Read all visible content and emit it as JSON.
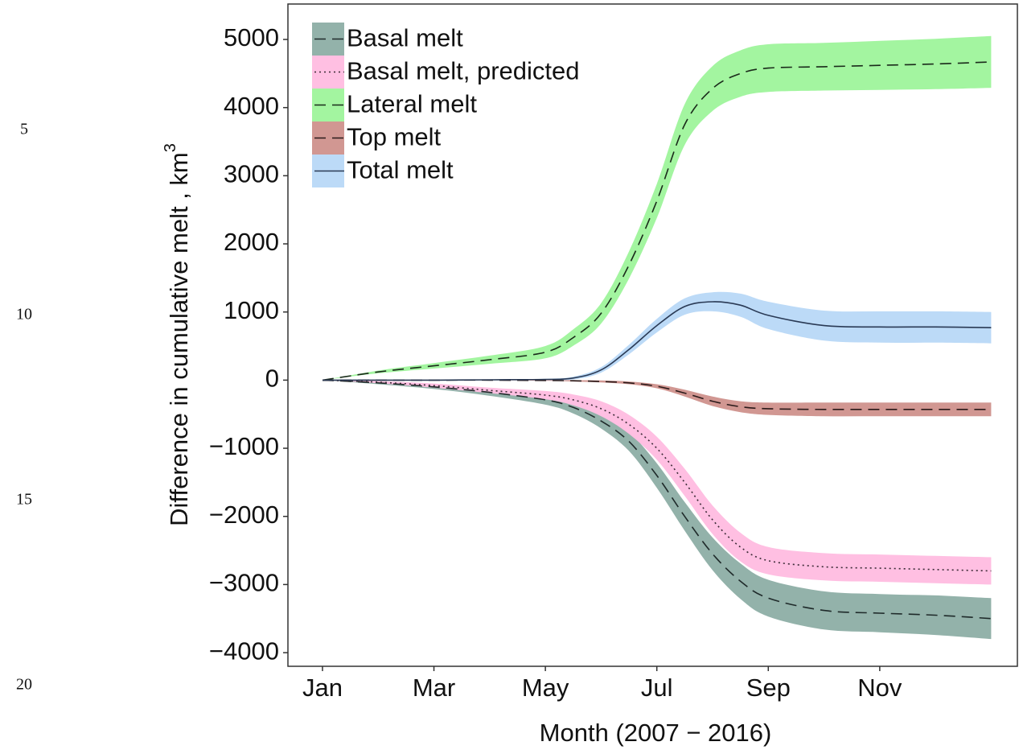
{
  "margin_line_numbers": [
    5,
    10,
    15,
    20
  ],
  "chart_data": {
    "type": "line_band",
    "xlabel": "Month (2007 − 2016)",
    "ylabel": "Difference in cumulative melt , km",
    "ylabel_superscript": "3",
    "x": [
      1,
      2,
      3,
      4,
      5,
      5.5,
      6,
      6.5,
      7,
      7.5,
      8,
      8.5,
      9,
      10,
      11,
      12,
      13
    ],
    "xlim": [
      0.38,
      13.47
    ],
    "xticks": [
      {
        "value": 1,
        "label": "Jan"
      },
      {
        "value": 3,
        "label": "Mar"
      },
      {
        "value": 5,
        "label": "May"
      },
      {
        "value": 7,
        "label": "Jul"
      },
      {
        "value": 9,
        "label": "Sep"
      },
      {
        "value": 11,
        "label": "Nov"
      }
    ],
    "ylim": [
      -4200,
      5520
    ],
    "yticks": [
      {
        "value": -4000,
        "label": "−4000"
      },
      {
        "value": -3000,
        "label": "−3000"
      },
      {
        "value": -2000,
        "label": "−2000"
      },
      {
        "value": -1000,
        "label": "−1000"
      },
      0,
      1000,
      2000,
      3000,
      4000,
      5000
    ],
    "legend": "top-left",
    "series": [
      {
        "name": "Basal melt",
        "color": "#1f2a2a",
        "band_color": "#93b2aa",
        "dash": "dashed",
        "values": [
          0,
          -40,
          -100,
          -180,
          -290,
          -400,
          -600,
          -900,
          -1400,
          -2000,
          -2550,
          -2950,
          -3200,
          -3380,
          -3420,
          -3450,
          -3500
        ],
        "lower": [
          0,
          -60,
          -130,
          -230,
          -360,
          -490,
          -710,
          -1040,
          -1580,
          -2210,
          -2790,
          -3210,
          -3470,
          -3660,
          -3700,
          -3740,
          -3800
        ],
        "upper": [
          0,
          -20,
          -70,
          -130,
          -220,
          -310,
          -490,
          -760,
          -1220,
          -1790,
          -2310,
          -2690,
          -2930,
          -3100,
          -3140,
          -3160,
          -3200
        ]
      },
      {
        "name": "Basal melt, predicted",
        "color": "#3a2a35",
        "band_color": "#ffbfe2",
        "dash": "dotted",
        "values": [
          0,
          -30,
          -80,
          -150,
          -220,
          -290,
          -420,
          -650,
          -1000,
          -1500,
          -2050,
          -2450,
          -2650,
          -2740,
          -2760,
          -2780,
          -2800
        ],
        "lower": [
          0,
          -45,
          -110,
          -190,
          -280,
          -370,
          -530,
          -790,
          -1170,
          -1700,
          -2260,
          -2660,
          -2850,
          -2940,
          -2960,
          -2980,
          -3000
        ],
        "upper": [
          0,
          -15,
          -50,
          -110,
          -160,
          -210,
          -310,
          -510,
          -830,
          -1300,
          -1840,
          -2240,
          -2450,
          -2540,
          -2560,
          -2580,
          -2600
        ]
      },
      {
        "name": "Lateral melt",
        "color": "#1a2a1a",
        "band_color": "#a3f5a0",
        "dash": "dashed",
        "values": [
          0,
          120,
          210,
          300,
          410,
          625,
          980,
          1690,
          2630,
          3750,
          4280,
          4500,
          4580,
          4600,
          4620,
          4640,
          4670
        ],
        "lower": [
          0,
          100,
          170,
          240,
          320,
          505,
          830,
          1490,
          2380,
          3450,
          3950,
          4160,
          4230,
          4250,
          4260,
          4270,
          4290
        ],
        "upper": [
          0,
          140,
          250,
          360,
          500,
          745,
          1130,
          1890,
          2880,
          4050,
          4610,
          4840,
          4930,
          4950,
          4980,
          5010,
          5050
        ]
      },
      {
        "name": "Top melt",
        "color": "#2a1a1a",
        "band_color": "#d19792",
        "dash": "dashed",
        "values": [
          0,
          0,
          0,
          0,
          -5,
          -10,
          -20,
          -40,
          -90,
          -190,
          -310,
          -390,
          -420,
          -430,
          -430,
          -430,
          -430
        ],
        "lower": [
          0,
          0,
          0,
          0,
          -10,
          -20,
          -35,
          -60,
          -120,
          -240,
          -380,
          -470,
          -510,
          -530,
          -530,
          -530,
          -530
        ],
        "upper": [
          0,
          0,
          0,
          0,
          0,
          0,
          -5,
          -20,
          -60,
          -140,
          -240,
          -310,
          -330,
          -330,
          -330,
          -330,
          -330
        ]
      },
      {
        "name": "Total melt",
        "color": "#2a3a55",
        "band_color": "#bcdaf7",
        "dash": "solid",
        "values": [
          0,
          0,
          0,
          5,
          10,
          30,
          150,
          450,
          800,
          1080,
          1150,
          1100,
          950,
          800,
          780,
          780,
          770
        ],
        "lower": [
          0,
          0,
          0,
          0,
          0,
          10,
          110,
          380,
          700,
          960,
          1010,
          930,
          750,
          580,
          550,
          550,
          540
        ],
        "upper": [
          0,
          0,
          0,
          10,
          20,
          50,
          190,
          520,
          900,
          1200,
          1290,
          1270,
          1150,
          1020,
          1010,
          1010,
          1000
        ]
      }
    ]
  }
}
